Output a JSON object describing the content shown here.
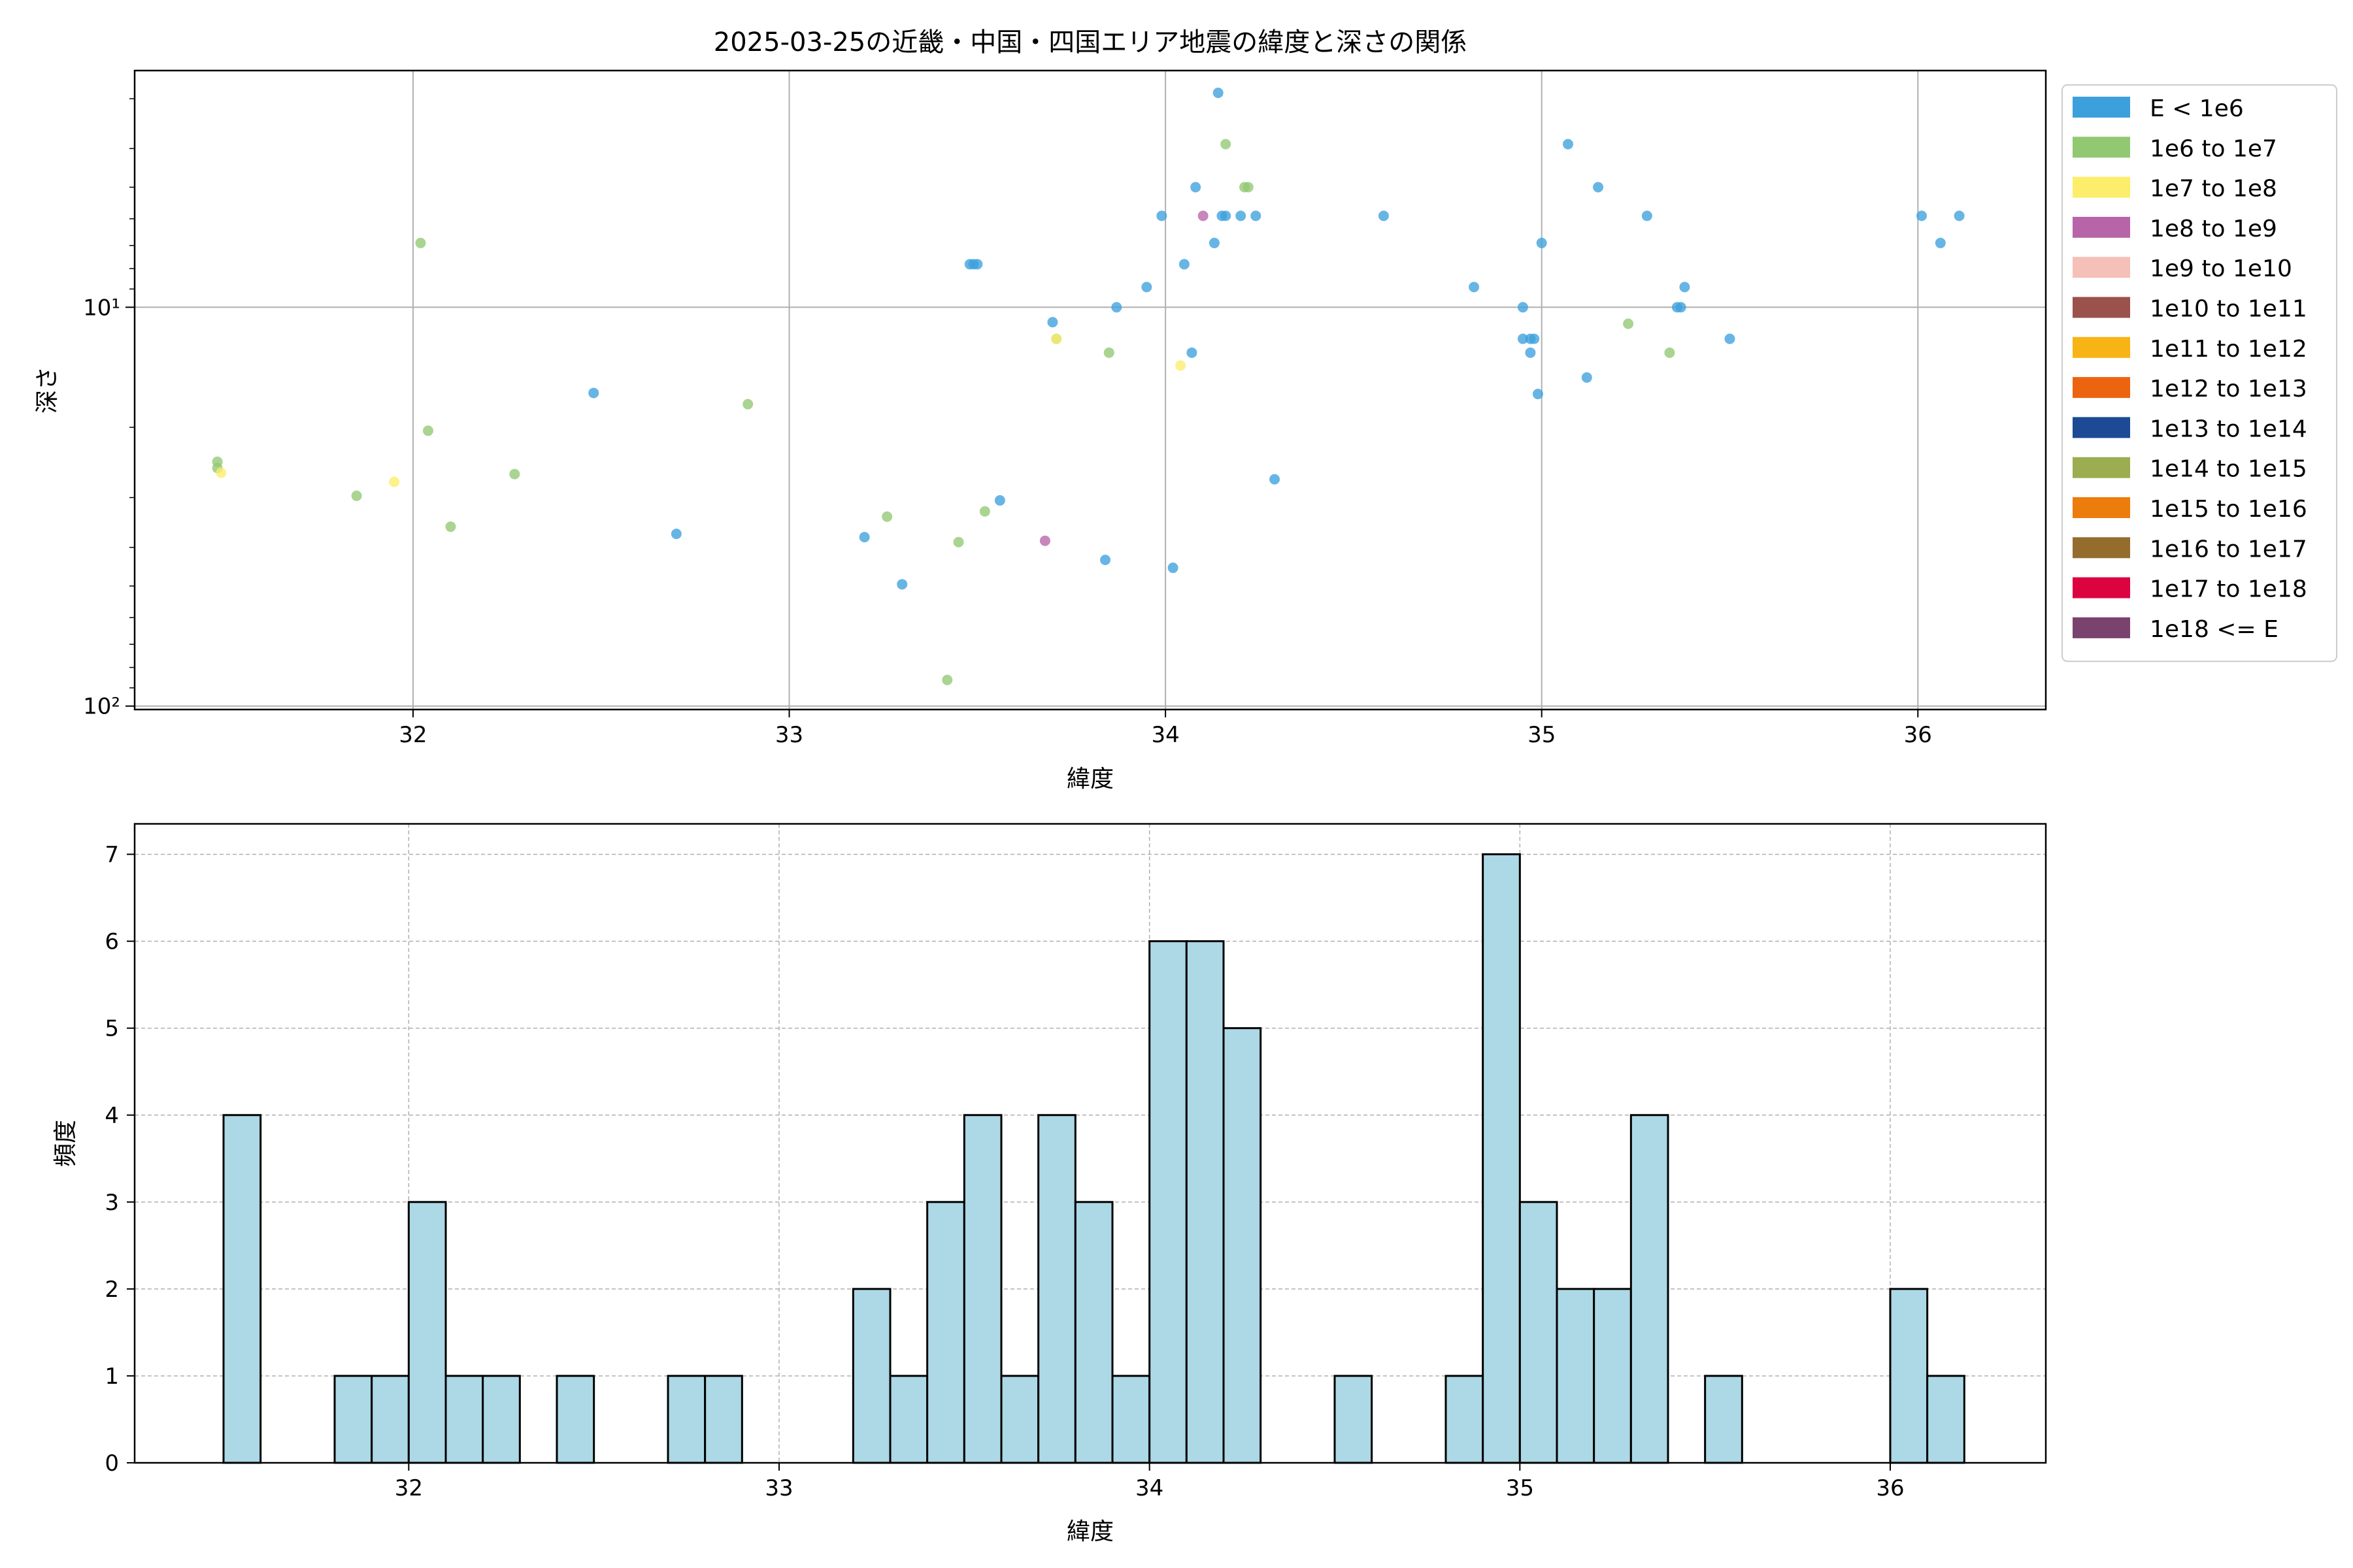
{
  "chart_data": [
    {
      "type": "scatter",
      "title": "2025-03-25の近畿・中国・四国エリア地震の緯度と深さの関係",
      "xlabel": "緯度",
      "ylabel": "深さ",
      "xlim": [
        31.26,
        36.34
      ],
      "ylim": [
        102,
        2.55
      ],
      "yscale": "log",
      "yaxis_inverted": true,
      "x_ticks": [
        32,
        33,
        34,
        35,
        36
      ],
      "x_tick_labels": [
        "32",
        "33",
        "34",
        "35",
        "36"
      ],
      "y_ticks": [
        10,
        100
      ],
      "y_tick_labels": [
        "10¹",
        "10²"
      ],
      "grid": true,
      "legend_position": "outside-right-top",
      "legend": [
        {
          "label": "E < 1e6",
          "color": "#3ca0dc"
        },
        {
          "label": "1e6 to 1e7",
          "color": "#92c872"
        },
        {
          "label": "1e7 to 1e8",
          "color": "#fced6a"
        },
        {
          "label": "1e8 to 1e9",
          "color": "#b864a8"
        },
        {
          "label": "1e9 to 1e10",
          "color": "#f5c0b8"
        },
        {
          "label": "1e10 to 1e11",
          "color": "#9a524a"
        },
        {
          "label": "1e11 to 1e12",
          "color": "#f8b414"
        },
        {
          "label": "1e12 to 1e13",
          "color": "#ec6410"
        },
        {
          "label": "1e13 to 1e14",
          "color": "#1c4a94"
        },
        {
          "label": "1e14 to 1e15",
          "color": "#9cac50"
        },
        {
          "label": "1e15 to 1e16",
          "color": "#ec7c0c"
        },
        {
          "label": "1e16 to 1e17",
          "color": "#946c2c"
        },
        {
          "label": "1e17 to 1e18",
          "color": "#dc0440"
        },
        {
          "label": "1e18 <= E",
          "color": "#7a426e"
        }
      ],
      "series": [
        {
          "name": "E < 1e6",
          "color": "#3ca0dc",
          "points": [
            [
              32.48,
              16.4
            ],
            [
              32.7,
              37.0
            ],
            [
              33.2,
              37.7
            ],
            [
              33.3,
              49.5
            ],
            [
              33.48,
              7.8
            ],
            [
              33.49,
              7.8
            ],
            [
              33.5,
              7.8
            ],
            [
              33.56,
              30.5
            ],
            [
              33.7,
              10.9
            ],
            [
              33.84,
              43.0
            ],
            [
              33.87,
              10.0
            ],
            [
              33.95,
              8.9
            ],
            [
              33.99,
              5.9
            ],
            [
              34.02,
              45.0
            ],
            [
              34.05,
              7.8
            ],
            [
              34.07,
              13.0
            ],
            [
              34.08,
              5.0
            ],
            [
              34.13,
              6.9
            ],
            [
              34.14,
              2.9
            ],
            [
              34.15,
              5.9
            ],
            [
              34.16,
              5.9
            ],
            [
              34.2,
              5.9
            ],
            [
              34.24,
              5.9
            ],
            [
              34.29,
              27.0
            ],
            [
              34.58,
              5.9
            ],
            [
              34.82,
              8.9
            ],
            [
              34.95,
              10.0
            ],
            [
              34.95,
              12.0
            ],
            [
              34.97,
              12.0
            ],
            [
              34.97,
              13.0
            ],
            [
              34.98,
              12.0
            ],
            [
              34.99,
              16.5
            ],
            [
              35.0,
              6.9
            ],
            [
              35.07,
              3.9
            ],
            [
              35.12,
              15.0
            ],
            [
              35.15,
              5.0
            ],
            [
              35.28,
              5.9
            ],
            [
              35.36,
              10.0
            ],
            [
              35.37,
              10.0
            ],
            [
              35.38,
              8.9
            ],
            [
              35.5,
              12.0
            ],
            [
              36.01,
              5.9
            ],
            [
              36.06,
              6.9
            ],
            [
              36.11,
              5.9
            ]
          ]
        },
        {
          "name": "1e6 to 1e7",
          "color": "#92c872",
          "points": [
            [
              31.48,
              24.4
            ],
            [
              31.48,
              25.3
            ],
            [
              31.85,
              29.7
            ],
            [
              32.02,
              6.9
            ],
            [
              32.04,
              20.4
            ],
            [
              32.1,
              35.5
            ],
            [
              32.27,
              26.2
            ],
            [
              32.89,
              17.5
            ],
            [
              33.26,
              33.5
            ],
            [
              33.42,
              86.0
            ],
            [
              33.45,
              38.8
            ],
            [
              33.52,
              32.5
            ],
            [
              33.71,
              12.0
            ],
            [
              33.85,
              13.0
            ],
            [
              34.16,
              3.9
            ],
            [
              34.21,
              5.0
            ],
            [
              34.22,
              5.0
            ],
            [
              35.23,
              11.0
            ],
            [
              35.34,
              13.0
            ]
          ]
        },
        {
          "name": "1e7 to 1e8",
          "color": "#fced6a",
          "points": [
            [
              31.49,
              26.0
            ],
            [
              31.95,
              27.4
            ],
            [
              33.71,
              12.0
            ],
            [
              34.04,
              14.0
            ]
          ]
        },
        {
          "name": "1e8 to 1e9",
          "color": "#b864a8",
          "points": [
            [
              33.68,
              38.5
            ],
            [
              34.1,
              5.9
            ]
          ]
        }
      ]
    },
    {
      "type": "bar",
      "subtype": "histogram",
      "xlabel": "緯度",
      "ylabel": "頻度",
      "xlim": [
        31.26,
        36.42
      ],
      "ylim": [
        0,
        7.35
      ],
      "x_ticks": [
        32,
        33,
        34,
        35,
        36
      ],
      "x_tick_labels": [
        "32",
        "33",
        "34",
        "35",
        "36"
      ],
      "y_ticks": [
        0,
        1,
        2,
        3,
        4,
        5,
        6,
        7
      ],
      "y_tick_labels": [
        "0",
        "1",
        "2",
        "3",
        "4",
        "5",
        "6",
        "7"
      ],
      "grid": true,
      "color": "#add8e6",
      "edge_color": "#000000",
      "bin_start": 31.5,
      "bin_width": 0.1,
      "values": [
        4,
        0,
        0,
        1,
        1,
        3,
        1,
        1,
        0,
        1,
        0,
        0,
        1,
        1,
        0,
        0,
        0,
        2,
        1,
        3,
        4,
        1,
        4,
        3,
        1,
        6,
        6,
        5,
        0,
        0,
        1,
        0,
        0,
        1,
        7,
        3,
        2,
        2,
        4,
        0,
        1,
        0,
        0,
        0,
        0,
        2,
        1
      ]
    }
  ]
}
